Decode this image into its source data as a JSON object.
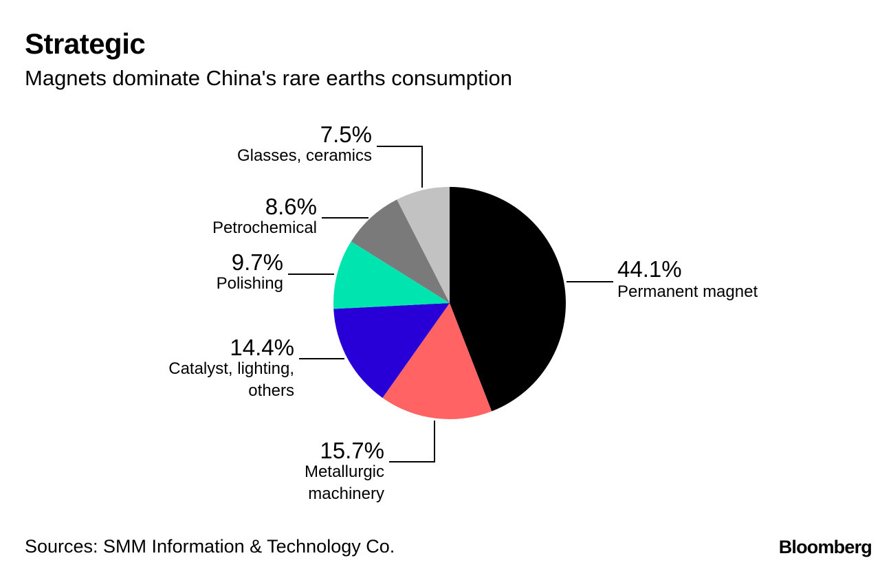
{
  "header": {
    "title": "Strategic",
    "subtitle": "Magnets dominate China's rare earths consumption"
  },
  "footer": {
    "source": "Sources: SMM Information & Technology Co.",
    "brand": "Bloomberg"
  },
  "chart_data": {
    "type": "pie",
    "title": "Strategic",
    "subtitle": "Magnets dominate China's rare earths consumption",
    "start": "12 o'clock, clockwise",
    "slices": [
      {
        "label": "Permanent magnet",
        "label_lines": [
          "Permanent magnet"
        ],
        "value": 44.1,
        "value_label": "44.1%",
        "color": "#000000"
      },
      {
        "label": "Metallurgic machinery",
        "label_lines": [
          "Metallurgic",
          "machinery"
        ],
        "value": 15.7,
        "value_label": "15.7%",
        "color": "#ff6363"
      },
      {
        "label": "Catalyst, lighting, others",
        "label_lines": [
          "Catalyst, lighting,",
          "others"
        ],
        "value": 14.4,
        "value_label": "14.4%",
        "color": "#2800d7"
      },
      {
        "label": "Polishing",
        "label_lines": [
          "Polishing"
        ],
        "value": 9.7,
        "value_label": "9.7%",
        "color": "#00e5b0"
      },
      {
        "label": "Petrochemical",
        "label_lines": [
          "Petrochemical"
        ],
        "value": 8.6,
        "value_label": "8.6%",
        "color": "#7a7a7a"
      },
      {
        "label": "Glasses, ceramics",
        "label_lines": [
          "Glasses, ceramics"
        ],
        "value": 7.5,
        "value_label": "7.5%",
        "color": "#c2c2c2"
      }
    ]
  }
}
